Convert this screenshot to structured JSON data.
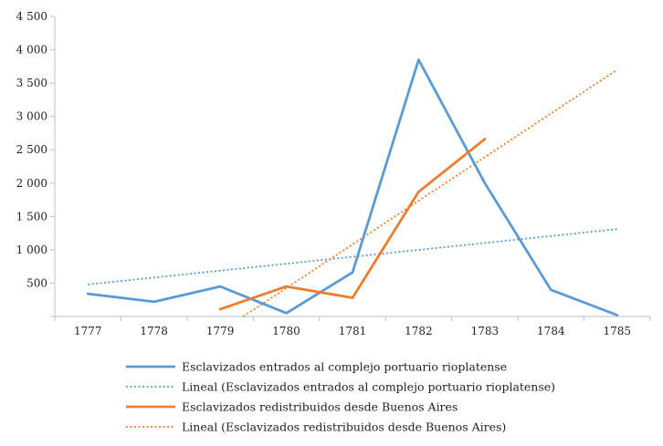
{
  "chart_data": {
    "type": "line",
    "title": "",
    "xlabel": "",
    "ylabel": "",
    "categories": [
      "1777",
      "1778",
      "1779",
      "1780",
      "1781",
      "1782",
      "1783",
      "1784",
      "1785"
    ],
    "ylim": [
      0,
      4500
    ],
    "yticks": [
      500,
      1000,
      1500,
      2000,
      2500,
      3000,
      3500,
      4000,
      4500
    ],
    "ytick_labels": [
      "500",
      "1 000",
      "1 500",
      "2 000",
      "2 500",
      "3 000",
      "3 500",
      "4 000",
      "4 500"
    ],
    "grid": false,
    "legend_position": "bottom",
    "series": [
      {
        "name": "Esclavizados entrados al complejo portuario rioplatense",
        "color": "#5b9bd5",
        "style": "solid",
        "values": [
          340,
          220,
          450,
          50,
          660,
          3850,
          2000,
          400,
          20
        ]
      },
      {
        "name": "Lineal (Esclavizados entrados al complejo portuario rioplatense)",
        "color": "#5b9bd5",
        "style": "dotted",
        "trend_start": [
          1777,
          480
        ],
        "trend_end": [
          1785,
          1310
        ]
      },
      {
        "name": "Esclavizados redistribuidos desde Buenos Aires",
        "color": "#ed7d31",
        "style": "solid",
        "values": [
          null,
          null,
          110,
          450,
          280,
          1870,
          2660,
          null,
          null
        ]
      },
      {
        "name": "Lineal (Esclavizados redistribuidos desde Buenos Aires)",
        "color": "#ed7d31",
        "style": "dotted",
        "trend_start": [
          1779.35,
          0
        ],
        "trend_end": [
          1785,
          3700
        ]
      }
    ]
  }
}
